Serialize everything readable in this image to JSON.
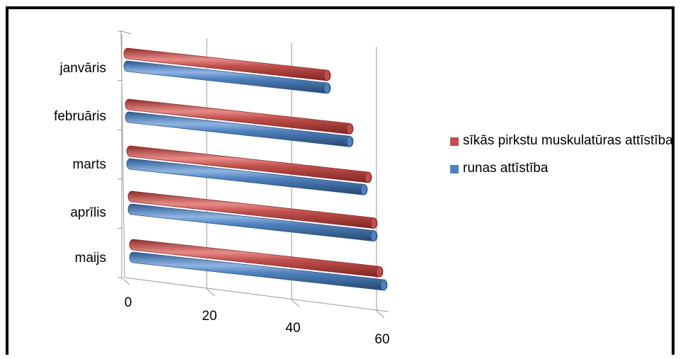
{
  "chart_data": {
    "type": "bar",
    "orientation": "horizontal",
    "style": "3d-cylinder",
    "categories": [
      "janvāris",
      "februāris",
      "marts",
      "aprīlis",
      "maijs"
    ],
    "series": [
      {
        "name": "sīkās pirkstu muskulatūras attīstība",
        "color": "#c0504d",
        "values": [
          47,
          52,
          56,
          57,
          58
        ]
      },
      {
        "name": "runas attīstība",
        "color": "#4f81bd",
        "values": [
          47,
          52,
          55,
          57,
          59
        ]
      }
    ],
    "xlim": [
      0,
      60
    ],
    "xticks": [
      "0",
      "20",
      "40",
      "60"
    ],
    "grid": true,
    "legend_position": "right"
  }
}
